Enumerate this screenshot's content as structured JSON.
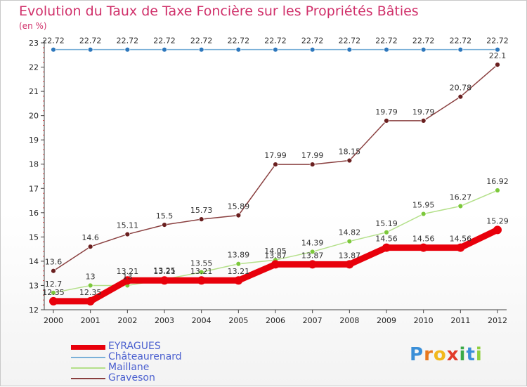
{
  "title": "Evolution du Taux de Taxe Foncière sur les Propriétés Bâties",
  "unit_label": "(en %)",
  "logo": {
    "letters": [
      "P",
      "r",
      "o",
      "x",
      "i",
      "t",
      "i"
    ],
    "colors": [
      "#3a8fd8",
      "#e8781e",
      "#f2b81c",
      "#e23b2b",
      "#3aaa48",
      "#3a8fd8",
      "#8fcf3c"
    ]
  },
  "chart_data": {
    "type": "line",
    "title": "Evolution du Taux de Taxe Foncière sur les Propriétés Bâties",
    "ylabel": "(en %)",
    "xlabel": "",
    "x": [
      "2000",
      "2001",
      "2002",
      "2003",
      "2004",
      "2005",
      "2006",
      "2007",
      "2008",
      "2009",
      "2010",
      "2011",
      "2012"
    ],
    "yticks": [
      12,
      13,
      14,
      15,
      16,
      17,
      18,
      19,
      20,
      21,
      22,
      23
    ],
    "ylim": [
      12,
      23
    ],
    "grid": false,
    "legend_position": "bottom-left",
    "series": [
      {
        "name": "EYRAGUES",
        "color": "#e8000b",
        "thick": true,
        "values": [
          12.35,
          12.35,
          13.21,
          13.21,
          13.21,
          13.21,
          13.87,
          13.87,
          13.87,
          14.56,
          14.56,
          14.56,
          15.29
        ],
        "labels": [
          "12.35",
          "12.35",
          "13.21",
          "13.21",
          "13.21",
          "13.21",
          "13.87",
          "13.87",
          "13.87",
          "14.56",
          "14.56",
          "14.56",
          "15.29"
        ]
      },
      {
        "name": "Châteaurenard",
        "color": "#7ab0d8",
        "marker": "#2e78bd",
        "values": [
          22.72,
          22.72,
          22.72,
          22.72,
          22.72,
          22.72,
          22.72,
          22.72,
          22.72,
          22.72,
          22.72,
          22.72,
          22.72
        ],
        "labels": [
          "22.72",
          "22.72",
          "22.72",
          "22.72",
          "22.72",
          "22.72",
          "22.72",
          "22.72",
          "22.72",
          "22.72",
          "22.72",
          "22.72",
          "22.72"
        ]
      },
      {
        "name": "Maillane",
        "color": "#b4e08a",
        "marker": "#7cc83a",
        "values": [
          12.7,
          13,
          13,
          13.25,
          13.55,
          13.89,
          14.05,
          14.39,
          14.82,
          15.19,
          15.95,
          16.27,
          16.92
        ],
        "labels": [
          "12.7",
          "13",
          "13",
          "13.25",
          "13.55",
          "13.89",
          "14.05",
          "14.39",
          "14.82",
          "15.19",
          "15.95",
          "16.27",
          "16.92"
        ]
      },
      {
        "name": "Graveson",
        "color": "#8a4040",
        "marker": "#6a1f1f",
        "values": [
          13.6,
          14.6,
          15.11,
          15.5,
          15.73,
          15.89,
          17.99,
          17.99,
          18.15,
          19.79,
          19.79,
          20.78,
          22.1
        ],
        "labels": [
          "13.6",
          "14.6",
          "15.11",
          "15.5",
          "15.73",
          "15.89",
          "17.99",
          "17.99",
          "18.15",
          "19.79",
          "19.79",
          "20.78",
          "22.1"
        ]
      }
    ]
  }
}
